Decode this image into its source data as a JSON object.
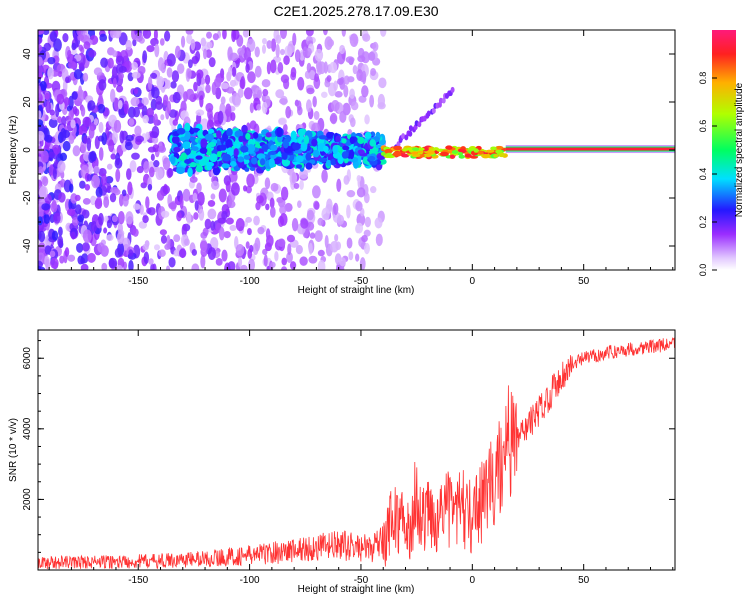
{
  "title": "C2E1.2025.278.17.09.E30",
  "chart_data": [
    {
      "type": "heatmap",
      "xlabel": "Height of straight line (km)",
      "ylabel": "Frequency (Hz)",
      "xlim": [
        -195,
        91
      ],
      "ylim": [
        -50,
        50
      ],
      "xticks": [
        -150,
        -100,
        -50,
        0,
        50
      ],
      "yticks": [
        -40,
        -20,
        0,
        20,
        40
      ],
      "colorbar": {
        "label": "Normalized spectral amplitude",
        "ticks": [
          0.0,
          0.2,
          0.4,
          0.6,
          0.8
        ],
        "range": [
          0,
          1
        ]
      },
      "features": [
        {
          "name": "scattered noise",
          "x_range": [
            -195,
            -40
          ],
          "y_range": [
            -50,
            50
          ],
          "amplitude": 0.15
        },
        {
          "name": "broadened carrier",
          "x_range": [
            -135,
            -40
          ],
          "y_range": [
            -8,
            8
          ],
          "amplitude": 0.4
        },
        {
          "name": "sharpening carrier",
          "x_range": [
            -40,
            15
          ],
          "y_range": [
            -3,
            3
          ],
          "amplitude": 0.75
        },
        {
          "name": "clean carrier",
          "x_range": [
            15,
            91
          ],
          "y_range": [
            -1,
            1
          ],
          "amplitude": 0.95
        }
      ]
    },
    {
      "type": "line",
      "xlabel": "Height of straight line (km)",
      "ylabel": "SNR (10 * v/v)",
      "xlim": [
        -195,
        91
      ],
      "ylim": [
        0,
        6800
      ],
      "xticks": [
        -150,
        -100,
        -50,
        0,
        50
      ],
      "yticks": [
        2000,
        4000,
        6000
      ],
      "series": [
        {
          "name": "SNR",
          "color": "#ff3333",
          "x": [
            -195,
            -180,
            -160,
            -140,
            -120,
            -100,
            -80,
            -60,
            -45,
            -40,
            -35,
            -30,
            -25,
            -20,
            -15,
            -10,
            -5,
            0,
            5,
            10,
            15,
            20,
            25,
            30,
            35,
            40,
            45,
            50,
            60,
            70,
            80,
            91
          ],
          "y": [
            200,
            220,
            230,
            260,
            320,
            420,
            560,
            700,
            600,
            800,
            1600,
            1100,
            1300,
            1500,
            1600,
            1700,
            1800,
            1500,
            2000,
            2600,
            3300,
            3700,
            4100,
            4500,
            5000,
            5500,
            5800,
            6000,
            6150,
            6250,
            6330,
            6400
          ]
        }
      ]
    }
  ]
}
